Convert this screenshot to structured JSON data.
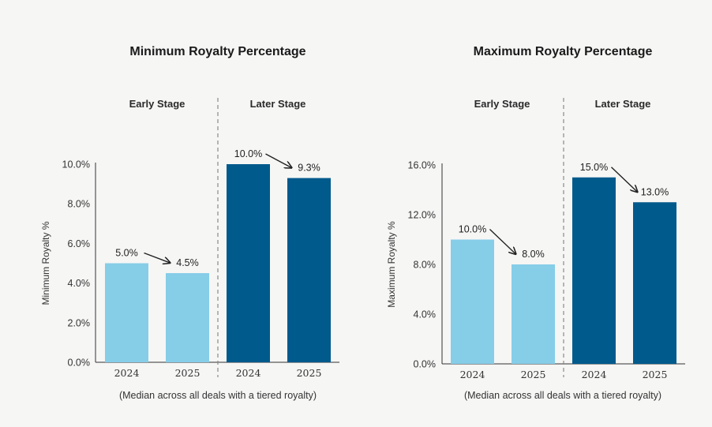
{
  "chart_data": [
    {
      "type": "bar",
      "title": "Minimum Royalty Percentage",
      "ylabel": "Minimum Royalty %",
      "note": "(Median across all deals with a tiered royalty)",
      "ylim": [
        0,
        10
      ],
      "yticks": [
        0,
        2,
        4,
        6,
        8,
        10
      ],
      "ytick_labels": [
        "0.0%",
        "2.0%",
        "4.0%",
        "6.0%",
        "8.0%",
        "10.0%"
      ],
      "groups": [
        {
          "label": "Early Stage",
          "color": "#86cde8",
          "bars": [
            {
              "category": "2024",
              "value": 5.0,
              "label": "5.0%"
            },
            {
              "category": "2025",
              "value": 4.5,
              "label": "4.5%"
            }
          ]
        },
        {
          "label": "Later Stage",
          "color": "#005a8c",
          "bars": [
            {
              "category": "2024",
              "value": 10.0,
              "label": "10.0%"
            },
            {
              "category": "2025",
              "value": 9.3,
              "label": "9.3%"
            }
          ]
        }
      ]
    },
    {
      "type": "bar",
      "title": "Maximum Royalty Percentage",
      "ylabel": "Maximum Royalty %",
      "note": "(Median across all deals with a tiered royalty)",
      "ylim": [
        0,
        16
      ],
      "yticks": [
        0,
        4,
        8,
        12,
        16
      ],
      "ytick_labels": [
        "0.0%",
        "4.0%",
        "8.0%",
        "12.0%",
        "16.0%"
      ],
      "groups": [
        {
          "label": "Early Stage",
          "color": "#86cde8",
          "bars": [
            {
              "category": "2024",
              "value": 10.0,
              "label": "10.0%"
            },
            {
              "category": "2025",
              "value": 8.0,
              "label": "8.0%"
            }
          ]
        },
        {
          "label": "Later Stage",
          "color": "#005a8c",
          "bars": [
            {
              "category": "2024",
              "value": 15.0,
              "label": "15.0%"
            },
            {
              "category": "2025",
              "value": 13.0,
              "label": "13.0%"
            }
          ]
        }
      ]
    }
  ]
}
